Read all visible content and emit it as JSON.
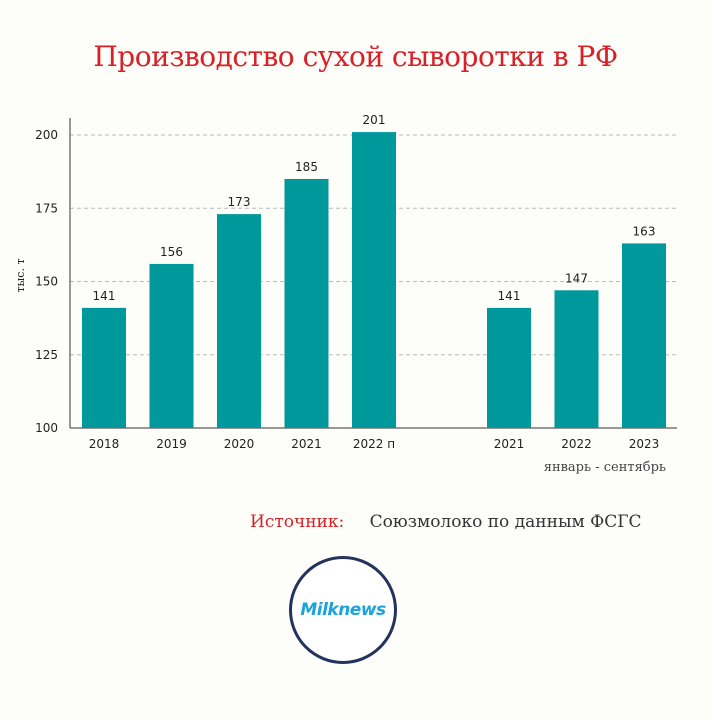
{
  "title": "Производство сухой сыворотки в РФ",
  "source_label": "Источник:",
  "source_text": "Союзмолоко по данным ФСГС",
  "logo_text": "Milknews",
  "colors": {
    "bar": "#00999b",
    "title": "#d92027",
    "logo_ring": "#24335e",
    "logo_text": "#1aa3dc"
  },
  "chart_data": {
    "type": "bar",
    "title": "Производство сухой сыворотки в РФ",
    "ylabel": "тыс. т",
    "ylim": [
      100,
      200
    ],
    "yticks": [
      100,
      125,
      150,
      175,
      200
    ],
    "grid": true,
    "groups": [
      {
        "sublabel": "",
        "categories": [
          "2018",
          "2019",
          "2020",
          "2021",
          "2022 п"
        ],
        "values": [
          141,
          156,
          173,
          185,
          201
        ]
      },
      {
        "sublabel": "январь - сентябрь",
        "categories": [
          "2021",
          "2022",
          "2023"
        ],
        "values": [
          141,
          147,
          163
        ]
      }
    ]
  }
}
